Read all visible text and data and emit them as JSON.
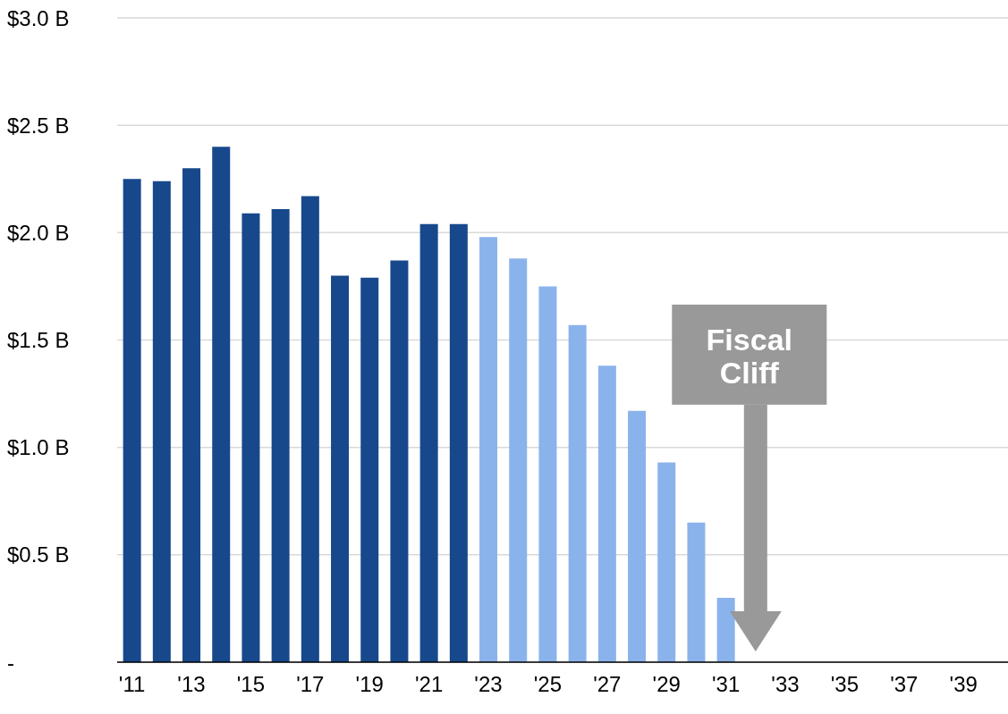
{
  "chart_data": {
    "type": "bar",
    "categories": [
      "'11",
      null,
      "'13",
      null,
      "'15",
      null,
      "'17",
      null,
      "'19",
      null,
      "'21",
      null,
      "'23",
      null,
      "'25",
      null,
      "'27",
      null,
      "'29",
      null,
      "'31",
      null,
      "'33",
      null,
      "'35",
      null,
      "'37",
      null,
      "'39",
      null
    ],
    "values": [
      2.25,
      2.24,
      2.3,
      2.4,
      2.09,
      2.11,
      2.17,
      1.8,
      1.79,
      1.87,
      2.04,
      2.04,
      1.98,
      1.88,
      1.75,
      1.57,
      1.38,
      1.17,
      0.93,
      0.65,
      0.3,
      null,
      null,
      null,
      null,
      null,
      null,
      null,
      null,
      null
    ],
    "colors": [
      "#17488c",
      "#17488c",
      "#17488c",
      "#17488c",
      "#17488c",
      "#17488c",
      "#17488c",
      "#17488c",
      "#17488c",
      "#17488c",
      "#17488c",
      "#17488c",
      "#8ab3ec",
      "#8ab3ec",
      "#8ab3ec",
      "#8ab3ec",
      "#8ab3ec",
      "#8ab3ec",
      "#8ab3ec",
      "#8ab3ec",
      "#8ab3ec",
      "#8ab3ec",
      "#8ab3ec",
      "#8ab3ec",
      "#8ab3ec",
      "#8ab3ec",
      "#8ab3ec",
      "#8ab3ec",
      "#8ab3ec",
      "#8ab3ec"
    ],
    "ylim": [
      0,
      3
    ],
    "yticks": [
      {
        "value": 0,
        "label": "-"
      },
      {
        "value": 0.5,
        "label": "$0.5 B"
      },
      {
        "value": 1,
        "label": "$1.0 B"
      },
      {
        "value": 1.5,
        "label": "$1.5 B"
      },
      {
        "value": 2,
        "label": "$2.0 B"
      },
      {
        "value": 2.5,
        "label": "$2.5 B"
      },
      {
        "value": 3,
        "label": "$3.0 B"
      }
    ],
    "grid": "y",
    "annotations": [
      "Fiscal Cliff"
    ]
  }
}
